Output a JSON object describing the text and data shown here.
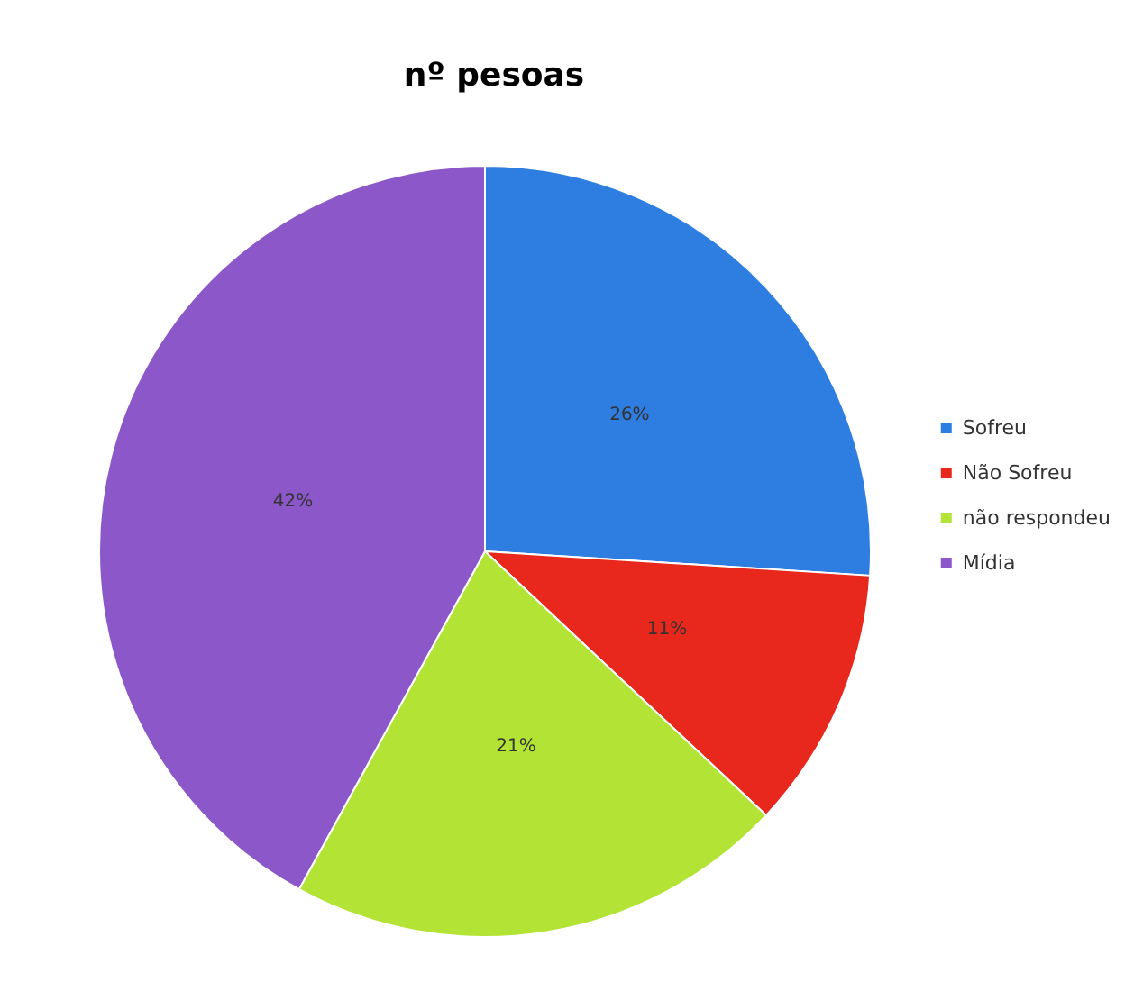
{
  "chart_data": {
    "type": "pie",
    "title": "nº pesoas",
    "categories": [
      "Sofreu",
      "Não Sofreu",
      "não respondeu",
      "Mídia"
    ],
    "values": [
      26,
      11,
      21,
      42
    ],
    "value_labels": [
      "26%",
      "11%",
      "21%",
      "42%"
    ],
    "colors": [
      "#2e7de0",
      "#e8281c",
      "#b2e335",
      "#8b57c9"
    ],
    "legend": "right"
  }
}
